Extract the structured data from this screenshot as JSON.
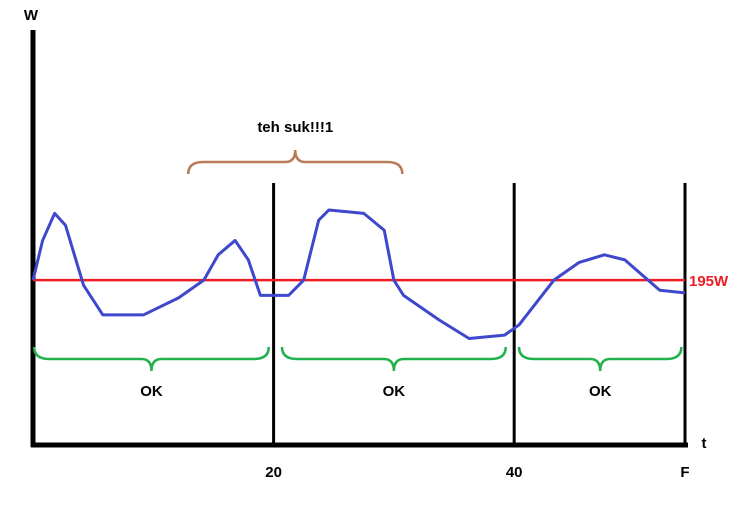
{
  "chart_data": {
    "type": "line",
    "x_label": "t",
    "y_label": "W",
    "xlim": [
      0,
      54.2
    ],
    "ylim": [
      0,
      485
    ],
    "xticks": [
      20,
      40,
      {
        "value": 54.2,
        "label": "F"
      }
    ],
    "grid": true,
    "series": [
      {
        "color": "#3f48cc",
        "x": [
          0,
          0.8,
          1.8,
          2.7,
          4.2,
          5.8,
          9.2,
          12.1,
          14.2,
          15.4,
          16.8,
          17.9,
          18.9,
          21.25,
          22.5,
          23.75,
          24.6,
          27.5,
          29.2,
          30,
          30.8,
          33.75,
          36.25,
          39.2,
          40.4,
          43.3,
          45.4,
          47.5,
          49.2,
          52.1,
          54.2
        ],
        "values": [
          195,
          242,
          274,
          260,
          189,
          154,
          154,
          174,
          195,
          225,
          242,
          219,
          177,
          177,
          195,
          266,
          278,
          274,
          254,
          195,
          177,
          148,
          126,
          130,
          142,
          195,
          216,
          225,
          219,
          183,
          180
        ]
      }
    ],
    "reference_line": {
      "value": 195,
      "label": "195W",
      "color": "#ed1c24"
    },
    "annotations": [
      {
        "text": "teh suk!!!1",
        "x": [
          12.9,
          30.7
        ],
        "color": "#b97a57",
        "side": "above"
      },
      {
        "text": "OK",
        "x": [
          0.1,
          19.6
        ],
        "color": "#22b14c",
        "side": "below"
      },
      {
        "text": "OK",
        "x": [
          20.7,
          39.3
        ],
        "color": "#22b14c",
        "side": "below"
      },
      {
        "text": "OK",
        "x": [
          40.4,
          53.9
        ],
        "color": "#22b14c",
        "side": "below"
      }
    ]
  }
}
